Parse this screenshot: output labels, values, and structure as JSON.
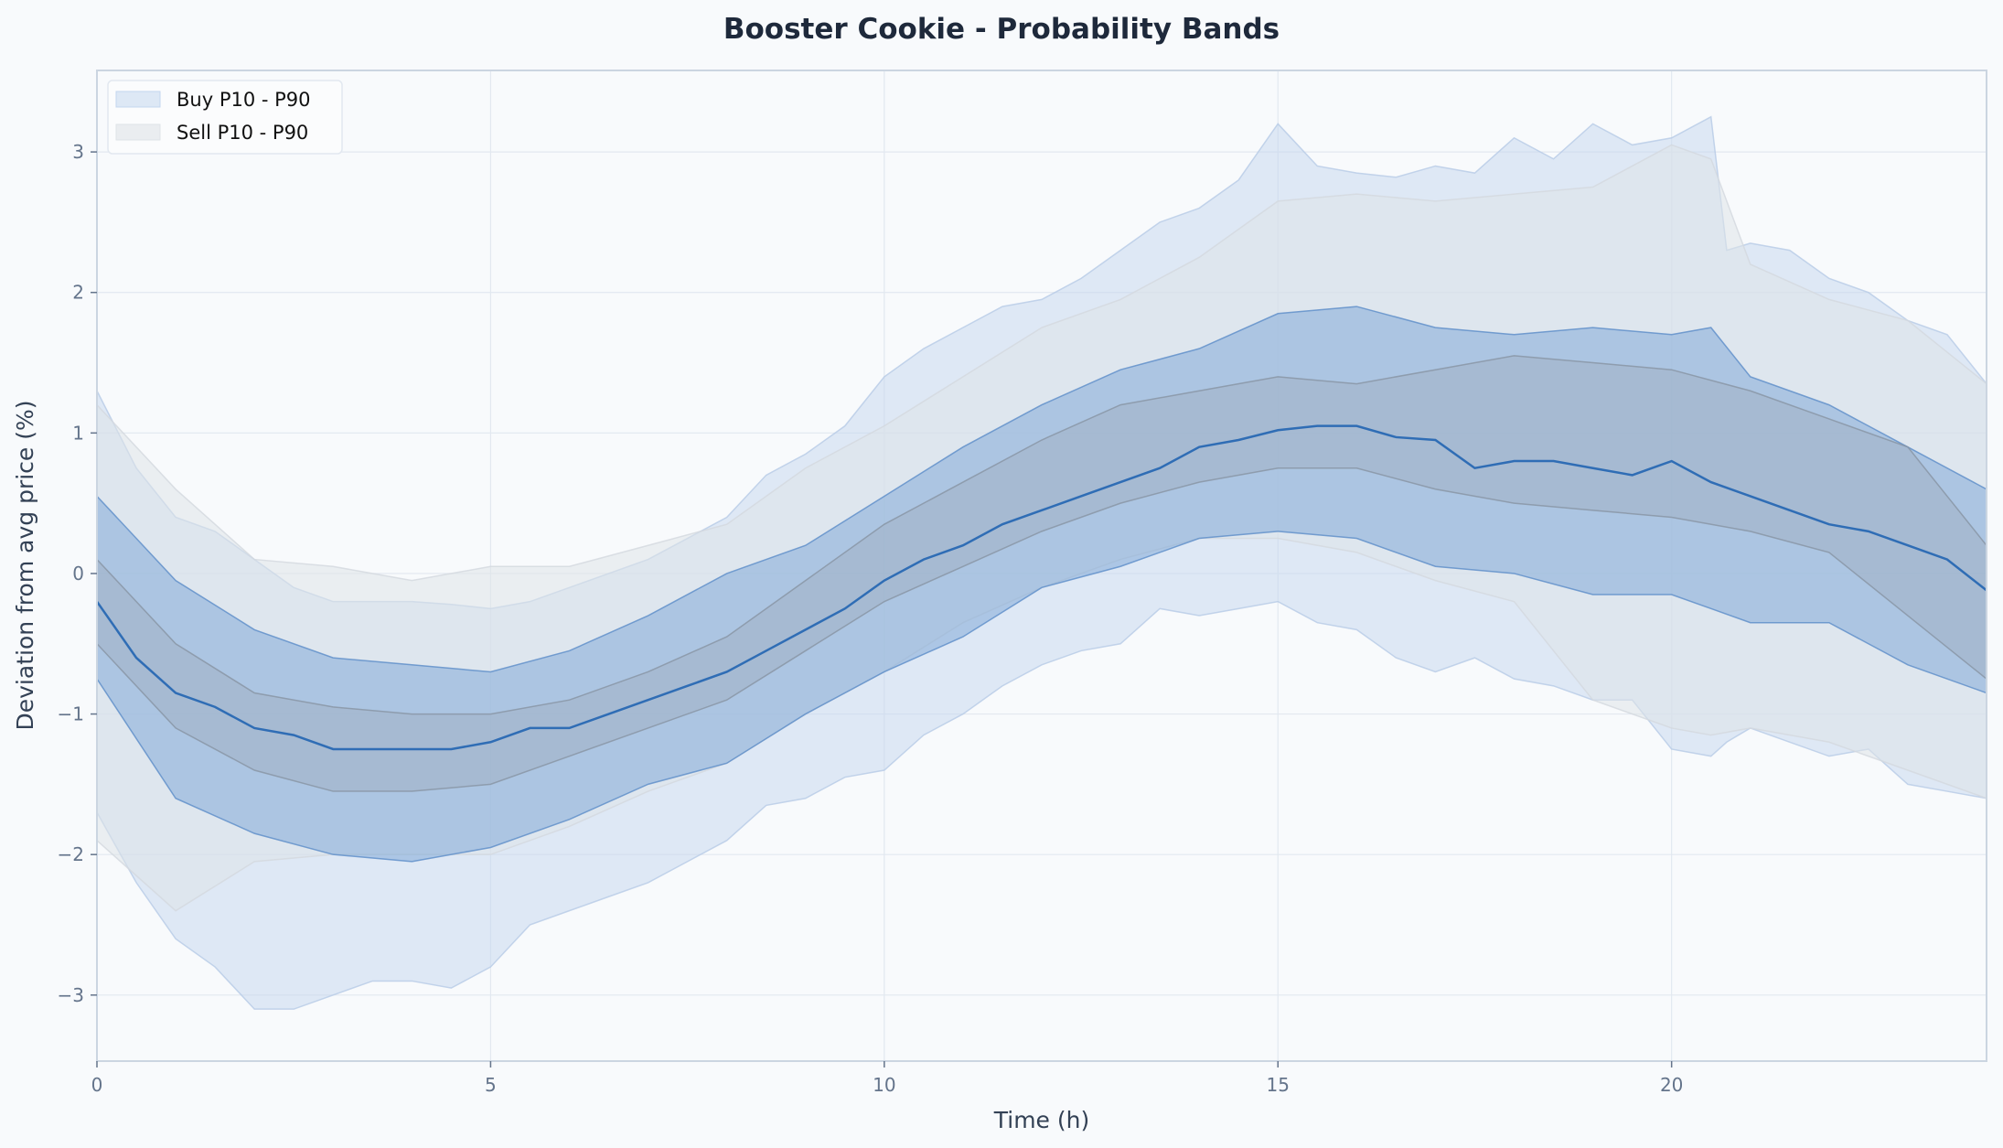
{
  "chart_data": {
    "type": "area",
    "title": "Booster Cookie  -  Probability Bands",
    "xlabel": "Time (h)",
    "ylabel": "Deviation from avg price (%)",
    "xlim": [
      0,
      24
    ],
    "ylim": [
      -3.47,
      3.58
    ],
    "xticks": [
      0,
      5,
      10,
      15,
      20
    ],
    "yticks": [
      -3,
      -2,
      -1,
      0,
      1,
      2,
      3
    ],
    "grid": true,
    "legend": {
      "placement": "top-left",
      "entries": [
        "Buy  P10 - P90",
        "Sell  P10 - P90"
      ]
    },
    "colors": {
      "buy_outer": "#c3d6ee",
      "sell_outer": "#dfe3e8",
      "buy_inner": "#6f9dd2",
      "sell_inner": "#9aa6b5",
      "buy_median": "#2f6db5",
      "background": "#f8fafc"
    },
    "bands": [
      {
        "name": "Buy  P10 - P90",
        "key": "buy_outer",
        "x": [
          0,
          0.5,
          1,
          1.5,
          2,
          2.5,
          3,
          3.5,
          4,
          4.5,
          5,
          5.5,
          6,
          6.5,
          7,
          7.5,
          8,
          8.5,
          9,
          9.5,
          10,
          10.5,
          11,
          11.5,
          12,
          12.5,
          13,
          13.5,
          14,
          14.5,
          15,
          15.5,
          16,
          16.5,
          17,
          17.5,
          18,
          18.5,
          19,
          19.5,
          20,
          20.5,
          20.7,
          21,
          21.5,
          22,
          22.5,
          23,
          23.5,
          24
        ],
        "upper": [
          1.3,
          0.75,
          0.4,
          0.3,
          0.1,
          -0.1,
          -0.2,
          -0.2,
          -0.2,
          -0.22,
          -0.25,
          -0.2,
          -0.1,
          0.0,
          0.1,
          0.25,
          0.4,
          0.7,
          0.85,
          1.05,
          1.4,
          1.6,
          1.75,
          1.9,
          1.95,
          2.1,
          2.3,
          2.5,
          2.6,
          2.8,
          3.2,
          2.9,
          2.85,
          2.82,
          2.9,
          2.85,
          3.1,
          2.95,
          3.2,
          3.05,
          3.1,
          3.25,
          2.3,
          2.35,
          2.3,
          2.1,
          2.0,
          1.8,
          1.7,
          1.35
        ],
        "lower": [
          -1.7,
          -2.2,
          -2.6,
          -2.8,
          -3.1,
          -3.1,
          -3.0,
          -2.9,
          -2.9,
          -2.95,
          -2.8,
          -2.5,
          -2.4,
          -2.3,
          -2.2,
          -2.05,
          -1.9,
          -1.65,
          -1.6,
          -1.45,
          -1.4,
          -1.15,
          -1.0,
          -0.8,
          -0.65,
          -0.55,
          -0.5,
          -0.25,
          -0.3,
          -0.25,
          -0.2,
          -0.35,
          -0.4,
          -0.6,
          -0.7,
          -0.6,
          -0.75,
          -0.8,
          -0.9,
          -0.9,
          -1.25,
          -1.3,
          -1.2,
          -1.1,
          -1.2,
          -1.3,
          -1.25,
          -1.5,
          -1.55,
          -1.6
        ]
      },
      {
        "name": "Sell  P10 - P90",
        "key": "sell_outer",
        "x": [
          0,
          1,
          2,
          3,
          4,
          5,
          6,
          7,
          8,
          9,
          10,
          11,
          12,
          13,
          14,
          15,
          16,
          17,
          18,
          19,
          20,
          20.5,
          21,
          22,
          23,
          24
        ],
        "upper": [
          1.2,
          0.6,
          0.1,
          0.05,
          -0.05,
          0.05,
          0.05,
          0.2,
          0.35,
          0.75,
          1.05,
          1.4,
          1.75,
          1.95,
          2.25,
          2.65,
          2.7,
          2.65,
          2.7,
          2.75,
          3.05,
          2.95,
          2.2,
          1.95,
          1.8,
          1.35
        ],
        "lower": [
          -1.9,
          -2.4,
          -2.05,
          -2.0,
          -2.0,
          -2.0,
          -1.8,
          -1.55,
          -1.35,
          -1.0,
          -0.7,
          -0.35,
          -0.1,
          0.1,
          0.25,
          0.25,
          0.15,
          -0.05,
          -0.2,
          -0.9,
          -1.1,
          -1.15,
          -1.1,
          -1.2,
          -1.4,
          -1.6
        ]
      },
      {
        "key": "buy_inner",
        "x": [
          0,
          1,
          2,
          3,
          4,
          5,
          6,
          7,
          8,
          9,
          10,
          11,
          12,
          13,
          14,
          15,
          16,
          17,
          18,
          19,
          20,
          20.5,
          21,
          22,
          23,
          24
        ],
        "upper": [
          0.55,
          -0.05,
          -0.4,
          -0.6,
          -0.65,
          -0.7,
          -0.55,
          -0.3,
          0.0,
          0.2,
          0.55,
          0.9,
          1.2,
          1.45,
          1.6,
          1.85,
          1.9,
          1.75,
          1.7,
          1.75,
          1.7,
          1.75,
          1.4,
          1.2,
          0.9,
          0.6
        ],
        "lower": [
          -0.75,
          -1.6,
          -1.85,
          -2.0,
          -2.05,
          -1.95,
          -1.75,
          -1.5,
          -1.35,
          -1.0,
          -0.7,
          -0.45,
          -0.1,
          0.05,
          0.25,
          0.3,
          0.25,
          0.05,
          0.0,
          -0.15,
          -0.15,
          -0.25,
          -0.35,
          -0.35,
          -0.65,
          -0.85
        ]
      },
      {
        "key": "sell_inner",
        "x": [
          0,
          1,
          2,
          3,
          4,
          5,
          6,
          7,
          8,
          9,
          10,
          11,
          12,
          13,
          14,
          15,
          16,
          17,
          18,
          19,
          20,
          21,
          22,
          23,
          24
        ],
        "upper": [
          0.1,
          -0.5,
          -0.85,
          -0.95,
          -1.0,
          -1.0,
          -0.9,
          -0.7,
          -0.45,
          -0.05,
          0.35,
          0.65,
          0.95,
          1.2,
          1.3,
          1.4,
          1.35,
          1.45,
          1.55,
          1.5,
          1.45,
          1.3,
          1.1,
          0.9,
          0.2
        ],
        "lower": [
          -0.5,
          -1.1,
          -1.4,
          -1.55,
          -1.55,
          -1.5,
          -1.3,
          -1.1,
          -0.9,
          -0.55,
          -0.2,
          0.05,
          0.3,
          0.5,
          0.65,
          0.75,
          0.75,
          0.6,
          0.5,
          0.45,
          0.4,
          0.3,
          0.15,
          -0.3,
          -0.75
        ]
      }
    ],
    "lines": [
      {
        "key": "buy_median",
        "x": [
          0,
          0.5,
          1,
          1.5,
          2,
          2.5,
          3,
          3.5,
          4,
          4.5,
          5,
          5.5,
          6,
          6.5,
          7,
          7.5,
          8,
          8.5,
          9,
          9.5,
          10,
          10.5,
          11,
          11.5,
          12,
          12.5,
          13,
          13.5,
          14,
          14.5,
          15,
          15.5,
          16,
          16.5,
          17,
          17.5,
          18,
          18.5,
          19,
          19.5,
          20,
          20.5,
          21,
          21.5,
          22,
          22.5,
          23,
          23.5,
          24
        ],
        "y": [
          -0.2,
          -0.6,
          -0.85,
          -0.95,
          -1.1,
          -1.15,
          -1.25,
          -1.25,
          -1.25,
          -1.25,
          -1.2,
          -1.1,
          -1.1,
          -1.0,
          -0.9,
          -0.8,
          -0.7,
          -0.55,
          -0.4,
          -0.25,
          -0.05,
          0.1,
          0.2,
          0.35,
          0.45,
          0.55,
          0.65,
          0.75,
          0.9,
          0.95,
          1.02,
          1.05,
          1.05,
          0.97,
          0.95,
          0.75,
          0.8,
          0.8,
          0.75,
          0.7,
          0.8,
          0.65,
          0.55,
          0.45,
          0.35,
          0.3,
          0.2,
          0.1,
          -0.12
        ]
      }
    ]
  }
}
